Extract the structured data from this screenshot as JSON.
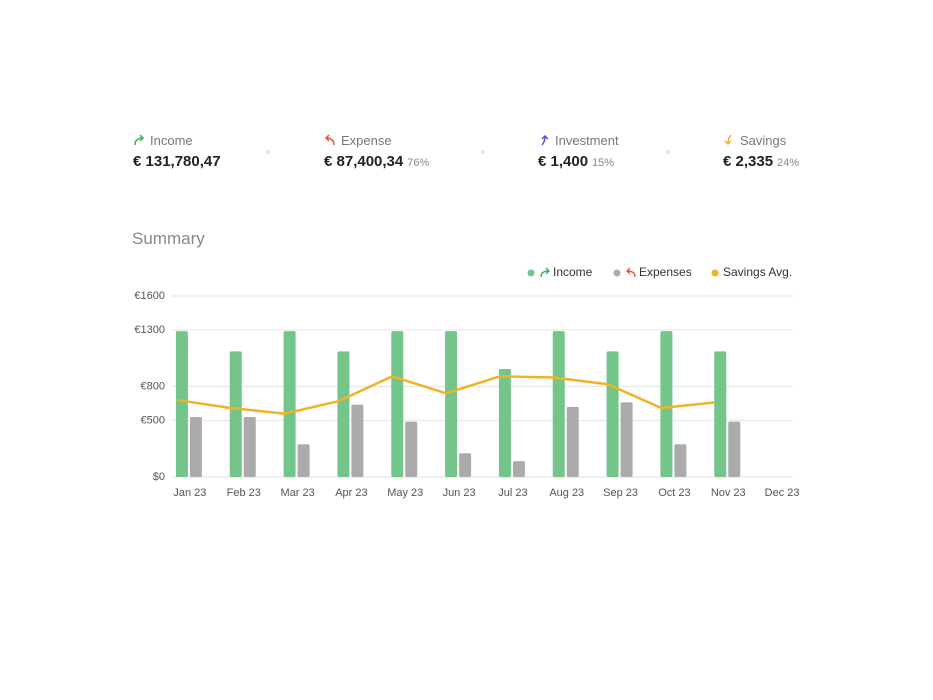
{
  "kpis": [
    {
      "label": "Income",
      "value": "€ 131,780,47"
    },
    {
      "label": "Expense",
      "value": "€ 87,400,34",
      "share": "76%"
    },
    {
      "label": "Investment",
      "value": "€ 1,400",
      "share": "15%"
    },
    {
      "label": "Savings",
      "value": "€ 2,335",
      "share": "24%"
    }
  ],
  "chart_data": {
    "type": "bar",
    "title": "Summary",
    "categories": [
      "Jan 23",
      "Feb 23",
      "Mar 23",
      "Apr 23",
      "May 23",
      "Jun 23",
      "Jul 23",
      "Aug 23",
      "Sep 23",
      "Oct 23",
      "Nov 23",
      "Dec 23"
    ],
    "series": [
      {
        "name": "Income",
        "color": "#74c58a",
        "values": [
          1290,
          1110,
          1290,
          1110,
          1290,
          1290,
          955,
          1290,
          1110,
          1290,
          1110,
          null
        ]
      },
      {
        "name": "Expenses",
        "color": "#ababab",
        "values": [
          530,
          530,
          290,
          640,
          490,
          210,
          140,
          620,
          660,
          290,
          490,
          null
        ]
      },
      {
        "name": "Savings Avg.",
        "type": "line",
        "color": "#f0b323",
        "values": [
          680,
          610,
          560,
          670,
          890,
          740,
          890,
          880,
          820,
          610,
          660,
          null
        ]
      }
    ],
    "ylim": [
      0,
      1600
    ],
    "yticks": [
      {
        "value": 0,
        "label": "$0"
      },
      {
        "value": 500,
        "label": "€500"
      },
      {
        "value": 800,
        "label": "€800"
      },
      {
        "value": 1300,
        "label": "€1300"
      },
      {
        "value": 1600,
        "label": "€1600"
      }
    ],
    "grid": true
  }
}
